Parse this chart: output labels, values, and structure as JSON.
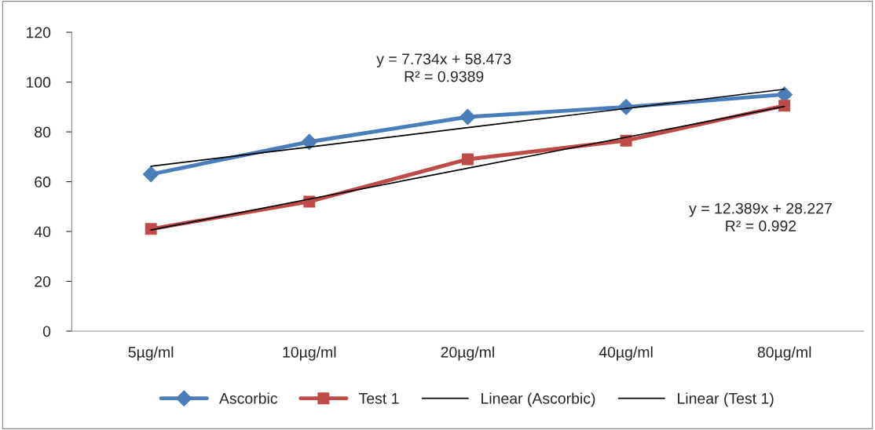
{
  "chart_data": {
    "type": "line",
    "categories": [
      "5µg/ml",
      "10µg/ml",
      "20µg/ml",
      "40µg/ml",
      "80µg/ml"
    ],
    "series": [
      {
        "name": "Ascorbic",
        "color": "#4a7ebb",
        "values": [
          63,
          76,
          86,
          90,
          95
        ],
        "marker": "diamond"
      },
      {
        "name": "Test 1",
        "color": "#be4b48",
        "values": [
          41,
          52,
          69,
          76.5,
          90.5
        ],
        "marker": "square"
      },
      {
        "name": "Linear (Ascorbic)",
        "color": "#000000",
        "values": [
          66.2,
          73.9,
          81.7,
          89.4,
          97.1
        ],
        "marker": "none"
      },
      {
        "name": "Linear (Test 1)",
        "color": "#000000",
        "values": [
          40.6,
          53.0,
          65.4,
          77.8,
          90.2
        ],
        "marker": "none"
      }
    ],
    "ylim": [
      0,
      120
    ],
    "yticks": [
      0,
      20,
      40,
      60,
      80,
      100,
      120
    ],
    "annotations": [
      "y = 7.734x + 58.473\nR² = 0.9389",
      "y = 12.389x + 28.227\nR² = 0.992"
    ],
    "legend": "bottom",
    "grid": false
  }
}
